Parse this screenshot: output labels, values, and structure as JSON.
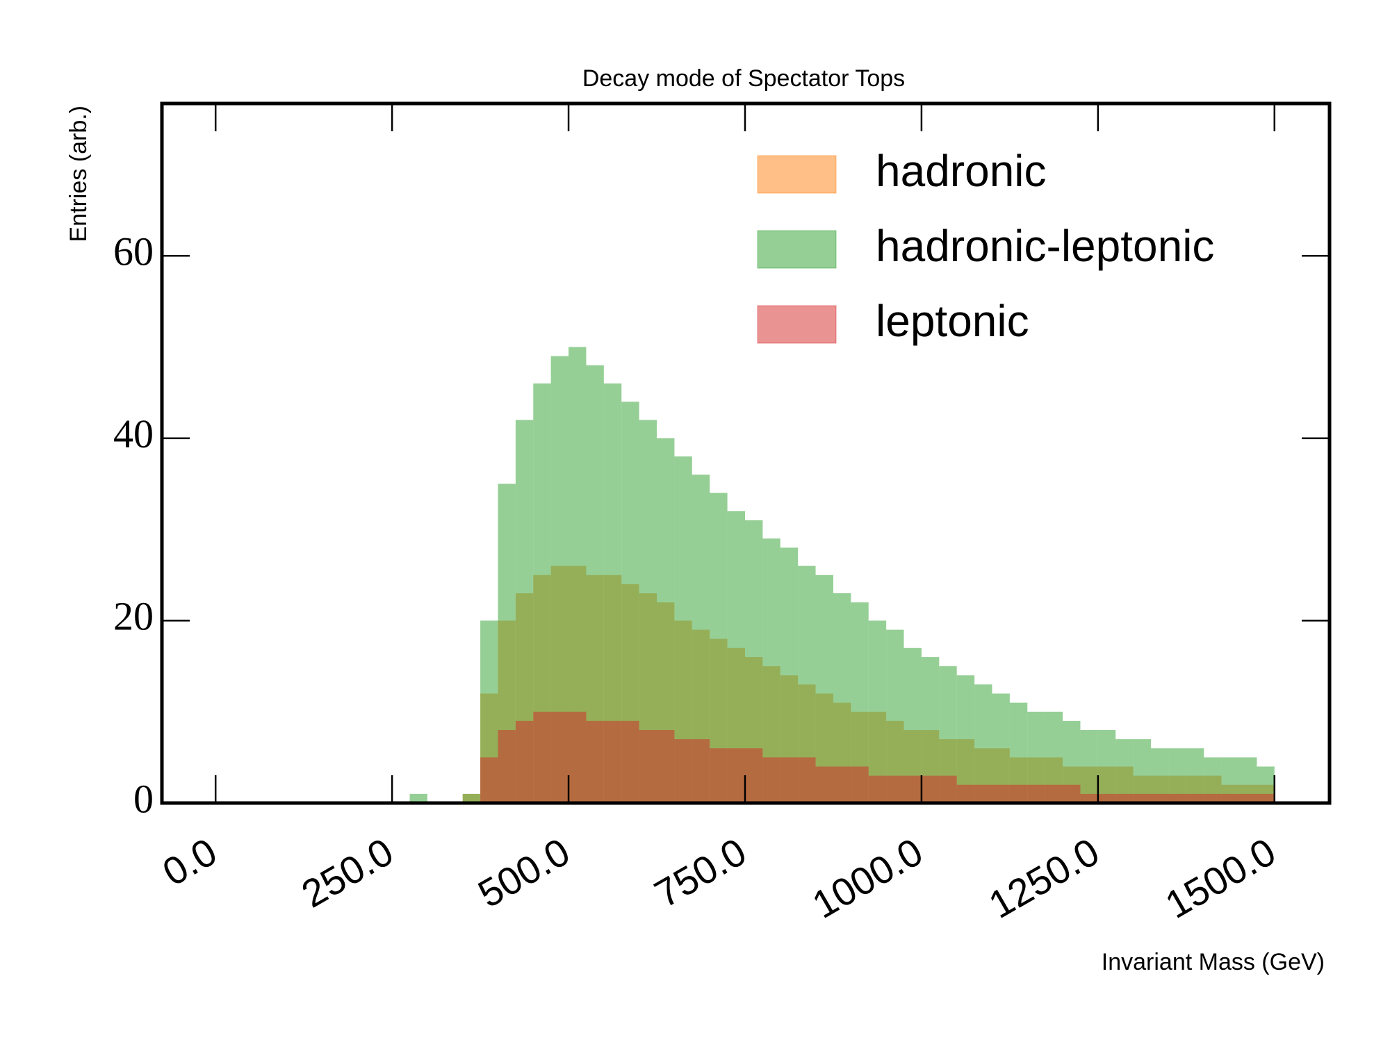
{
  "chart_data": {
    "type": "histogram",
    "title": "Decay mode of Spectator Tops",
    "x_label": "Invariant Mass (GeV)",
    "y_label": "Entries (arb.)",
    "bins": [
      0,
      25,
      50,
      75,
      100,
      125,
      150,
      175,
      200,
      225,
      250,
      275,
      300,
      325,
      350,
      375,
      400,
      425,
      450,
      475,
      500,
      525,
      550,
      575,
      600,
      625,
      650,
      675,
      700,
      725,
      750,
      775,
      800,
      825,
      850,
      875,
      900,
      925,
      950,
      975,
      1000,
      1025,
      1050,
      1075,
      1100,
      1125,
      1150,
      1175,
      1200,
      1225,
      1250,
      1275,
      1300,
      1325,
      1350,
      1375,
      1400,
      1425,
      1450,
      1475,
      1500
    ],
    "series": [
      {
        "name": "hadronic",
        "color": "#ff7f0e",
        "values": [
          0,
          0,
          0,
          0,
          0,
          0,
          0,
          0,
          0,
          0,
          0,
          0,
          0,
          0,
          1,
          12,
          20,
          23,
          25,
          26,
          26,
          25,
          25,
          24,
          23,
          22,
          20,
          19,
          18,
          17,
          16,
          15,
          14,
          13,
          12,
          11,
          10,
          10,
          9,
          8,
          8,
          7,
          7,
          6,
          6,
          5,
          5,
          5,
          4,
          4,
          4,
          4,
          3,
          3,
          3,
          3,
          3,
          2,
          2,
          2
        ]
      },
      {
        "name": "hadronic-leptonic",
        "color": "#2ca02c",
        "values": [
          0,
          0,
          0,
          0,
          0,
          0,
          0,
          0,
          0,
          0,
          0,
          1,
          0,
          0,
          1,
          20,
          35,
          42,
          46,
          49,
          50,
          48,
          46,
          44,
          42,
          40,
          38,
          36,
          34,
          32,
          31,
          29,
          28,
          26,
          25,
          23,
          22,
          20,
          19,
          17,
          16,
          15,
          14,
          13,
          12,
          11,
          10,
          10,
          9,
          8,
          8,
          7,
          7,
          6,
          6,
          6,
          5,
          5,
          5,
          4
        ]
      },
      {
        "name": "leptonic",
        "color": "#d62728",
        "values": [
          0,
          0,
          0,
          0,
          0,
          0,
          0,
          0,
          0,
          0,
          0,
          0,
          0,
          0,
          0,
          5,
          8,
          9,
          10,
          10,
          10,
          9,
          9,
          9,
          8,
          8,
          7,
          7,
          6,
          6,
          6,
          5,
          5,
          5,
          4,
          4,
          4,
          3,
          3,
          3,
          3,
          3,
          2,
          2,
          2,
          2,
          2,
          2,
          2,
          1,
          1,
          1,
          1,
          1,
          1,
          1,
          1,
          1,
          1,
          1
        ]
      }
    ],
    "opacity": 0.5,
    "xlim": [
      -76,
      1578
    ],
    "ylim": [
      0,
      76.7
    ],
    "xticks": [
      {
        "value": 0,
        "label": "0.0"
      },
      {
        "value": 250,
        "label": "250.0"
      },
      {
        "value": 500,
        "label": "500.0"
      },
      {
        "value": 750,
        "label": "750.0"
      },
      {
        "value": 1000,
        "label": "1000.0"
      },
      {
        "value": 1250,
        "label": "1250.0"
      },
      {
        "value": 1500,
        "label": "1500.0"
      }
    ],
    "yticks": [
      0,
      20,
      40,
      60
    ],
    "legend": "upper right"
  }
}
